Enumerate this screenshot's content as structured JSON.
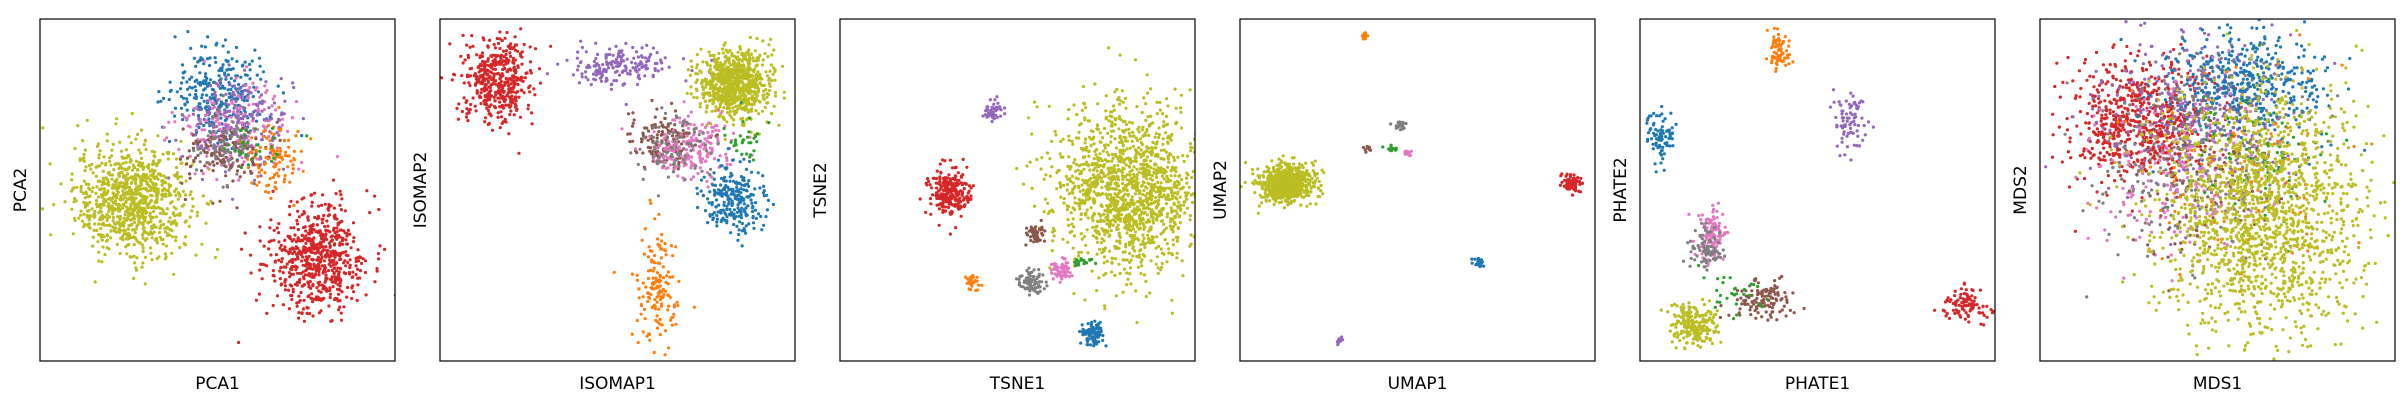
{
  "chart_data": [
    {
      "type": "scatter",
      "xlabel": "PCA1",
      "ylabel": "PCA2",
      "xlim": [
        0,
        100
      ],
      "ylim": [
        0,
        100
      ],
      "clusters": [
        {
          "color": "#bcbd22",
          "center": [
            26,
            47
          ],
          "spread": [
            8,
            8
          ],
          "count": 900
        },
        {
          "color": "#1f77b4",
          "center": [
            50,
            78
          ],
          "spread": [
            7,
            7
          ],
          "count": 300
        },
        {
          "color": "#e377c2",
          "center": [
            55,
            68
          ],
          "spread": [
            8,
            6
          ],
          "count": 220
        },
        {
          "color": "#9467bd",
          "center": [
            57,
            70
          ],
          "spread": [
            7,
            7
          ],
          "count": 160
        },
        {
          "color": "#8c564b",
          "center": [
            52,
            60
          ],
          "spread": [
            6,
            5
          ],
          "count": 120
        },
        {
          "color": "#ff7f0e",
          "center": [
            66,
            60
          ],
          "spread": [
            4,
            5
          ],
          "count": 100
        },
        {
          "color": "#7f7f7f",
          "center": [
            52,
            63
          ],
          "spread": [
            5,
            5
          ],
          "count": 80
        },
        {
          "color": "#2ca02c",
          "center": [
            60,
            63
          ],
          "spread": [
            4,
            4
          ],
          "count": 30
        },
        {
          "color": "#d62728",
          "center": [
            78,
            30
          ],
          "spread": [
            7,
            8
          ],
          "count": 650
        }
      ]
    },
    {
      "type": "scatter",
      "xlabel": "ISOMAP1",
      "ylabel": "ISOMAP2",
      "xlim": [
        0,
        100
      ],
      "ylim": [
        0,
        100
      ],
      "clusters": [
        {
          "color": "#d62728",
          "center": [
            16,
            82
          ],
          "spread": [
            5,
            6
          ],
          "count": 450
        },
        {
          "color": "#9467bd",
          "center": [
            50,
            86
          ],
          "spread": [
            7,
            3
          ],
          "count": 180
        },
        {
          "color": "#bcbd22",
          "center": [
            83,
            81
          ],
          "spread": [
            5,
            5
          ],
          "count": 800
        },
        {
          "color": "#8c564b",
          "center": [
            63,
            65
          ],
          "spread": [
            5,
            4
          ],
          "count": 150
        },
        {
          "color": "#e377c2",
          "center": [
            71,
            62
          ],
          "spread": [
            6,
            5
          ],
          "count": 200
        },
        {
          "color": "#7f7f7f",
          "center": [
            66,
            63
          ],
          "spread": [
            5,
            5
          ],
          "count": 80
        },
        {
          "color": "#1f77b4",
          "center": [
            83,
            47
          ],
          "spread": [
            4,
            5
          ],
          "count": 250
        },
        {
          "color": "#2ca02c",
          "center": [
            86,
            65
          ],
          "spread": [
            3,
            4
          ],
          "count": 30
        },
        {
          "color": "#ff7f0e",
          "center": [
            61,
            22
          ],
          "spread": [
            3,
            9
          ],
          "count": 150
        }
      ]
    },
    {
      "type": "scatter",
      "xlabel": "TSNE1",
      "ylabel": "TSNE2",
      "xlim": [
        0,
        100
      ],
      "ylim": [
        0,
        100
      ],
      "clusters": [
        {
          "color": "#bcbd22",
          "center": [
            81,
            50
          ],
          "spread": [
            10,
            12
          ],
          "count": 1400
        },
        {
          "color": "#d62728",
          "center": [
            31,
            49
          ],
          "spread": [
            3,
            3.5
          ],
          "count": 250
        },
        {
          "color": "#9467bd",
          "center": [
            43,
            73
          ],
          "spread": [
            1.2,
            1.5
          ],
          "count": 60
        },
        {
          "color": "#8c564b",
          "center": [
            55,
            37
          ],
          "spread": [
            1.3,
            1.3
          ],
          "count": 50
        },
        {
          "color": "#e377c2",
          "center": [
            62,
            27
          ],
          "spread": [
            1.5,
            1.5
          ],
          "count": 60
        },
        {
          "color": "#7f7f7f",
          "center": [
            54,
            23
          ],
          "spread": [
            1.8,
            1.8
          ],
          "count": 80
        },
        {
          "color": "#ff7f0e",
          "center": [
            37,
            23
          ],
          "spread": [
            1,
            1.2
          ],
          "count": 30
        },
        {
          "color": "#1f77b4",
          "center": [
            71,
            8
          ],
          "spread": [
            1.5,
            2
          ],
          "count": 100
        },
        {
          "color": "#2ca02c",
          "center": [
            68,
            29
          ],
          "spread": [
            1.5,
            1
          ],
          "count": 20
        }
      ]
    },
    {
      "type": "scatter",
      "xlabel": "UMAP1",
      "ylabel": "UMAP2",
      "xlim": [
        0,
        100
      ],
      "ylim": [
        0,
        100
      ],
      "clusters": [
        {
          "color": "#bcbd22",
          "center": [
            13,
            52
          ],
          "spread": [
            4,
            2.8
          ],
          "count": 700
        },
        {
          "color": "#d62728",
          "center": [
            93,
            52
          ],
          "spread": [
            1.5,
            1.3
          ],
          "count": 70
        },
        {
          "color": "#ff7f0e",
          "center": [
            35,
            95
          ],
          "spread": [
            0.6,
            0.6
          ],
          "count": 15
        },
        {
          "color": "#7f7f7f",
          "center": [
            45,
            69
          ],
          "spread": [
            0.8,
            0.8
          ],
          "count": 25
        },
        {
          "color": "#8c564b",
          "center": [
            36,
            62
          ],
          "spread": [
            0.6,
            0.5
          ],
          "count": 10
        },
        {
          "color": "#2ca02c",
          "center": [
            43,
            62
          ],
          "spread": [
            1.2,
            0.4
          ],
          "count": 10
        },
        {
          "color": "#e377c2",
          "center": [
            47,
            61
          ],
          "spread": [
            0.8,
            0.6
          ],
          "count": 15
        },
        {
          "color": "#1f77b4",
          "center": [
            67,
            29
          ],
          "spread": [
            0.8,
            0.6
          ],
          "count": 25
        },
        {
          "color": "#9467bd",
          "center": [
            28,
            6
          ],
          "spread": [
            0.6,
            0.6
          ],
          "count": 12
        }
      ]
    },
    {
      "type": "scatter",
      "xlabel": "PHATE1",
      "ylabel": "PHATE2",
      "xlim": [
        0,
        100
      ],
      "ylim": [
        0,
        100
      ],
      "clusters": [
        {
          "color": "#ff7f0e",
          "center": [
            39,
            91
          ],
          "spread": [
            1.5,
            3
          ],
          "count": 80
        },
        {
          "color": "#9467bd",
          "center": [
            59,
            70
          ],
          "spread": [
            2,
            4
          ],
          "count": 80
        },
        {
          "color": "#1f77b4",
          "center": [
            6,
            66
          ],
          "spread": [
            2,
            4
          ],
          "count": 80
        },
        {
          "color": "#e377c2",
          "center": [
            20,
            37
          ],
          "spread": [
            2,
            4
          ],
          "count": 120
        },
        {
          "color": "#7f7f7f",
          "center": [
            19,
            33
          ],
          "spread": [
            2.5,
            3
          ],
          "count": 80
        },
        {
          "color": "#8c564b",
          "center": [
            34,
            18
          ],
          "spread": [
            4,
            3
          ],
          "count": 120
        },
        {
          "color": "#bcbd22",
          "center": [
            15,
            11
          ],
          "spread": [
            3.5,
            3
          ],
          "count": 200
        },
        {
          "color": "#d62728",
          "center": [
            92,
            16
          ],
          "spread": [
            4,
            2.5
          ],
          "count": 100
        },
        {
          "color": "#2ca02c",
          "center": [
            25,
            20
          ],
          "spread": [
            4,
            4
          ],
          "count": 30
        }
      ]
    },
    {
      "type": "scatter",
      "xlabel": "MDS1",
      "ylabel": "MDS2",
      "xlim": [
        0,
        100
      ],
      "ylim": [
        0,
        100
      ],
      "clusters": [
        {
          "color": "#d62728",
          "center": [
            28,
            70
          ],
          "spread": [
            10,
            9
          ],
          "count": 700
        },
        {
          "color": "#9467bd",
          "center": [
            42,
            73
          ],
          "spread": [
            13,
            12
          ],
          "count": 350
        },
        {
          "color": "#1f77b4",
          "center": [
            58,
            80
          ],
          "spread": [
            12,
            8
          ],
          "count": 450
        },
        {
          "color": "#7f7f7f",
          "center": [
            45,
            62
          ],
          "spread": [
            14,
            14
          ],
          "count": 300
        },
        {
          "color": "#e377c2",
          "center": [
            40,
            55
          ],
          "spread": [
            13,
            14
          ],
          "count": 200
        },
        {
          "color": "#2ca02c",
          "center": [
            60,
            60
          ],
          "spread": [
            10,
            10
          ],
          "count": 80
        },
        {
          "color": "#ff7f0e",
          "center": [
            55,
            55
          ],
          "spread": [
            15,
            15
          ],
          "count": 100
        },
        {
          "color": "#8c564b",
          "center": [
            45,
            50
          ],
          "spread": [
            12,
            12
          ],
          "count": 80
        },
        {
          "color": "#bcbd22",
          "center": [
            63,
            43
          ],
          "spread": [
            14,
            18
          ],
          "count": 1600
        }
      ]
    }
  ]
}
